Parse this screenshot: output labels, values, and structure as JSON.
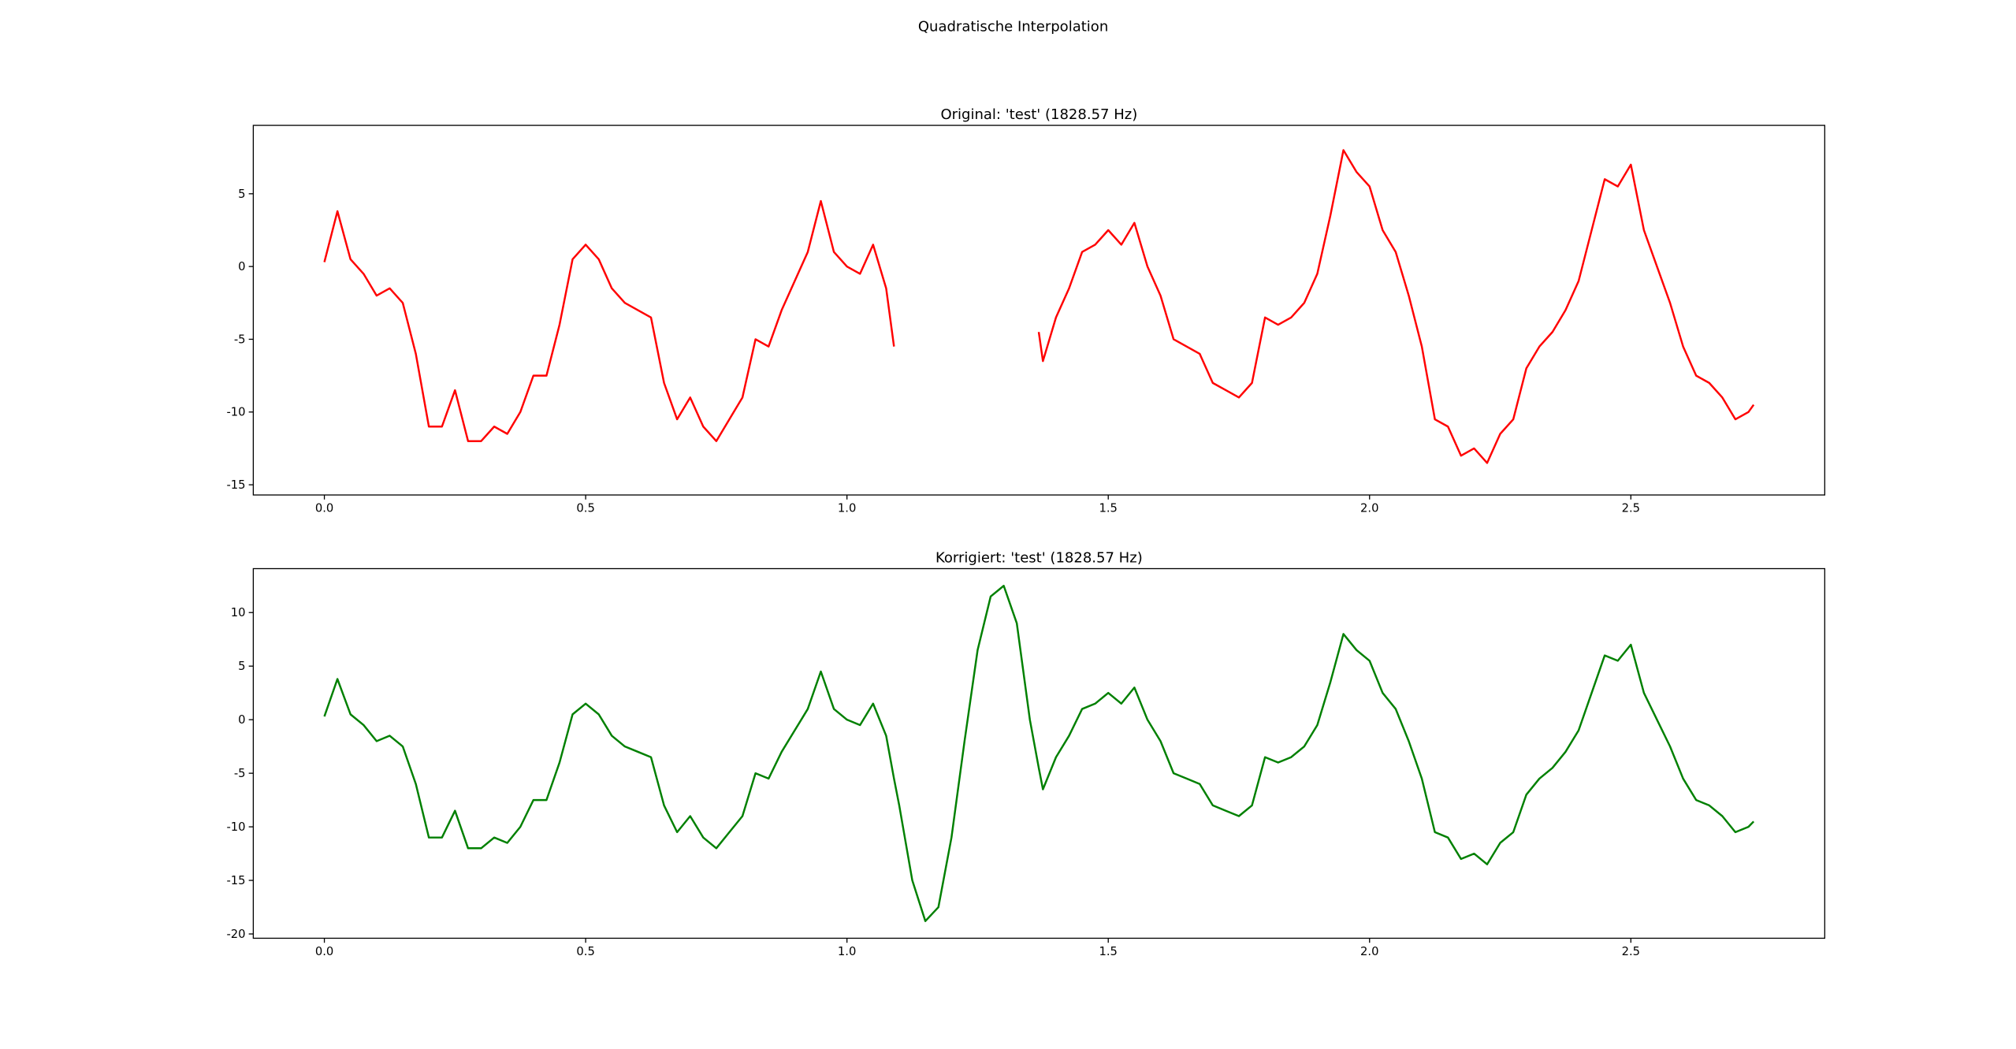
{
  "title": "Quadratische Interpolation",
  "chart_data": [
    {
      "type": "line",
      "title": "Original: 'test' (1828.57 Hz)",
      "x": [
        0,
        0.025,
        0.05,
        0.075,
        0.1,
        0.125,
        0.15,
        0.175,
        0.2,
        0.225,
        0.25,
        0.275,
        0.3,
        0.325,
        0.35,
        0.375,
        0.4,
        0.425,
        0.45,
        0.475,
        0.5,
        0.525,
        0.55,
        0.575,
        0.6,
        0.625,
        0.65,
        0.675,
        0.7,
        0.725,
        0.75,
        0.775,
        0.8,
        0.825,
        0.85,
        0.875,
        0.9,
        0.925,
        0.95,
        0.975,
        1.0,
        1.025,
        1.05,
        1.075,
        1.09,
        1.2,
        1.367,
        1.375,
        1.4,
        1.425,
        1.45,
        1.475,
        1.5,
        1.525,
        1.55,
        1.575,
        1.6,
        1.625,
        1.65,
        1.675,
        1.7,
        1.725,
        1.75,
        1.775,
        1.8,
        1.825,
        1.85,
        1.875,
        1.9,
        1.925,
        1.95,
        1.975,
        2.0,
        2.025,
        2.05,
        2.075,
        2.1,
        2.125,
        2.15,
        2.175,
        2.2,
        2.225,
        2.25,
        2.275,
        2.3,
        2.325,
        2.35,
        2.375,
        2.4,
        2.425,
        2.45,
        2.475,
        2.5,
        2.525,
        2.55,
        2.575,
        2.6,
        2.625,
        2.65,
        2.675,
        2.7,
        2.725,
        2.735
      ],
      "series": [
        {
          "color": "#ff0000",
          "values": [
            0.3,
            3.8,
            0.5,
            -0.5,
            -2.0,
            -1.5,
            -2.5,
            -6.0,
            -11.0,
            -11.0,
            -8.5,
            -12.0,
            -12.0,
            -11.0,
            -11.5,
            -10.0,
            -7.5,
            -7.5,
            -4.0,
            0.5,
            1.5,
            0.5,
            -1.5,
            -2.5,
            -3.0,
            -3.5,
            -8.0,
            -10.5,
            -9.0,
            -11.0,
            -12.0,
            -10.5,
            -9.0,
            -5.0,
            -5.5,
            -3.0,
            -1.0,
            1.0,
            4.5,
            1.0,
            0.0,
            -0.5,
            1.5,
            -1.5,
            -5.5,
            null,
            -4.5,
            -6.5,
            -3.5,
            -1.5,
            1.0,
            1.5,
            2.5,
            1.5,
            3.0,
            0.0,
            -2.0,
            -5.0,
            -5.5,
            -6.0,
            -8.0,
            -8.5,
            -9.0,
            -8.0,
            -3.5,
            -4.0,
            -3.5,
            -2.5,
            -0.5,
            3.5,
            8.0,
            6.5,
            5.5,
            2.5,
            1.0,
            -2.0,
            -5.5,
            -10.5,
            -11.0,
            -13.0,
            -12.5,
            -13.5,
            -11.5,
            -10.5,
            -7.0,
            -5.5,
            -4.5,
            -3.0,
            -1.0,
            2.5,
            6.0,
            5.5,
            7.0,
            2.5,
            0.0,
            -2.5,
            -5.5,
            -7.5,
            -8.0,
            -9.0,
            -10.5,
            -10.0,
            -9.5
          ]
        }
      ],
      "xlim": [
        -0.136,
        2.871
      ],
      "ylim": [
        -15.7,
        9.7
      ],
      "xticks": [
        {
          "value": 0,
          "label": "0.0"
        },
        0.5,
        {
          "value": 1,
          "label": "1.0"
        },
        1.5,
        {
          "value": 2,
          "label": "2.0"
        },
        2.5
      ],
      "yticks": [
        -15,
        -10,
        -5,
        0,
        5
      ]
    },
    {
      "type": "line",
      "title": "Korrigiert: 'test' (1828.57 Hz)",
      "x": [
        0,
        0.025,
        0.05,
        0.075,
        0.1,
        0.125,
        0.15,
        0.175,
        0.2,
        0.225,
        0.25,
        0.275,
        0.3,
        0.325,
        0.35,
        0.375,
        0.4,
        0.425,
        0.45,
        0.475,
        0.5,
        0.525,
        0.55,
        0.575,
        0.6,
        0.625,
        0.65,
        0.675,
        0.7,
        0.725,
        0.75,
        0.775,
        0.8,
        0.825,
        0.85,
        0.875,
        0.9,
        0.925,
        0.95,
        0.975,
        1.0,
        1.025,
        1.05,
        1.075,
        1.09,
        1.1,
        1.125,
        1.15,
        1.175,
        1.2,
        1.225,
        1.25,
        1.275,
        1.3,
        1.325,
        1.35,
        1.367,
        1.375,
        1.4,
        1.425,
        1.45,
        1.475,
        1.5,
        1.525,
        1.55,
        1.575,
        1.6,
        1.625,
        1.65,
        1.675,
        1.7,
        1.725,
        1.75,
        1.775,
        1.8,
        1.825,
        1.85,
        1.875,
        1.9,
        1.925,
        1.95,
        1.975,
        2.0,
        2.025,
        2.05,
        2.075,
        2.1,
        2.125,
        2.15,
        2.175,
        2.2,
        2.225,
        2.25,
        2.275,
        2.3,
        2.325,
        2.35,
        2.375,
        2.4,
        2.425,
        2.45,
        2.475,
        2.5,
        2.525,
        2.55,
        2.575,
        2.6,
        2.625,
        2.65,
        2.675,
        2.7,
        2.725,
        2.735
      ],
      "series": [
        {
          "color": "#008000",
          "values": [
            0.3,
            3.8,
            0.5,
            -0.5,
            -2.0,
            -1.5,
            -2.5,
            -6.0,
            -11.0,
            -11.0,
            -8.5,
            -12.0,
            -12.0,
            -11.0,
            -11.5,
            -10.0,
            -7.5,
            -7.5,
            -4.0,
            0.5,
            1.5,
            0.5,
            -1.5,
            -2.5,
            -3.0,
            -3.5,
            -8.0,
            -10.5,
            -9.0,
            -11.0,
            -12.0,
            -10.5,
            -9.0,
            -5.0,
            -5.5,
            -3.0,
            -1.0,
            1.0,
            4.5,
            1.0,
            0.0,
            -0.5,
            1.5,
            -1.5,
            -5.5,
            -8.0,
            -15.0,
            -18.8,
            -17.5,
            -11.0,
            -2.0,
            6.5,
            11.5,
            12.5,
            9.0,
            0.0,
            -4.5,
            -6.5,
            -3.5,
            -1.5,
            1.0,
            1.5,
            2.5,
            1.5,
            3.0,
            0.0,
            -2.0,
            -5.0,
            -5.5,
            -6.0,
            -8.0,
            -8.5,
            -9.0,
            -8.0,
            -3.5,
            -4.0,
            -3.5,
            -2.5,
            -0.5,
            3.5,
            8.0,
            6.5,
            5.5,
            2.5,
            1.0,
            -2.0,
            -5.5,
            -10.5,
            -11.0,
            -13.0,
            -12.5,
            -13.5,
            -11.5,
            -10.5,
            -7.0,
            -5.5,
            -4.5,
            -3.0,
            -1.0,
            2.5,
            6.0,
            5.5,
            7.0,
            2.5,
            0.0,
            -2.5,
            -5.5,
            -7.5,
            -8.0,
            -9.0,
            -10.5,
            -10.0,
            -9.5
          ]
        }
      ],
      "xlim": [
        -0.136,
        2.871
      ],
      "ylim": [
        -20.4,
        14.1
      ],
      "xticks": [
        {
          "value": 0,
          "label": "0.0"
        },
        0.5,
        {
          "value": 1,
          "label": "1.0"
        },
        1.5,
        {
          "value": 2,
          "label": "2.0"
        },
        2.5
      ],
      "yticks": [
        -20,
        -15,
        -10,
        -5,
        0,
        5,
        10
      ]
    }
  ]
}
